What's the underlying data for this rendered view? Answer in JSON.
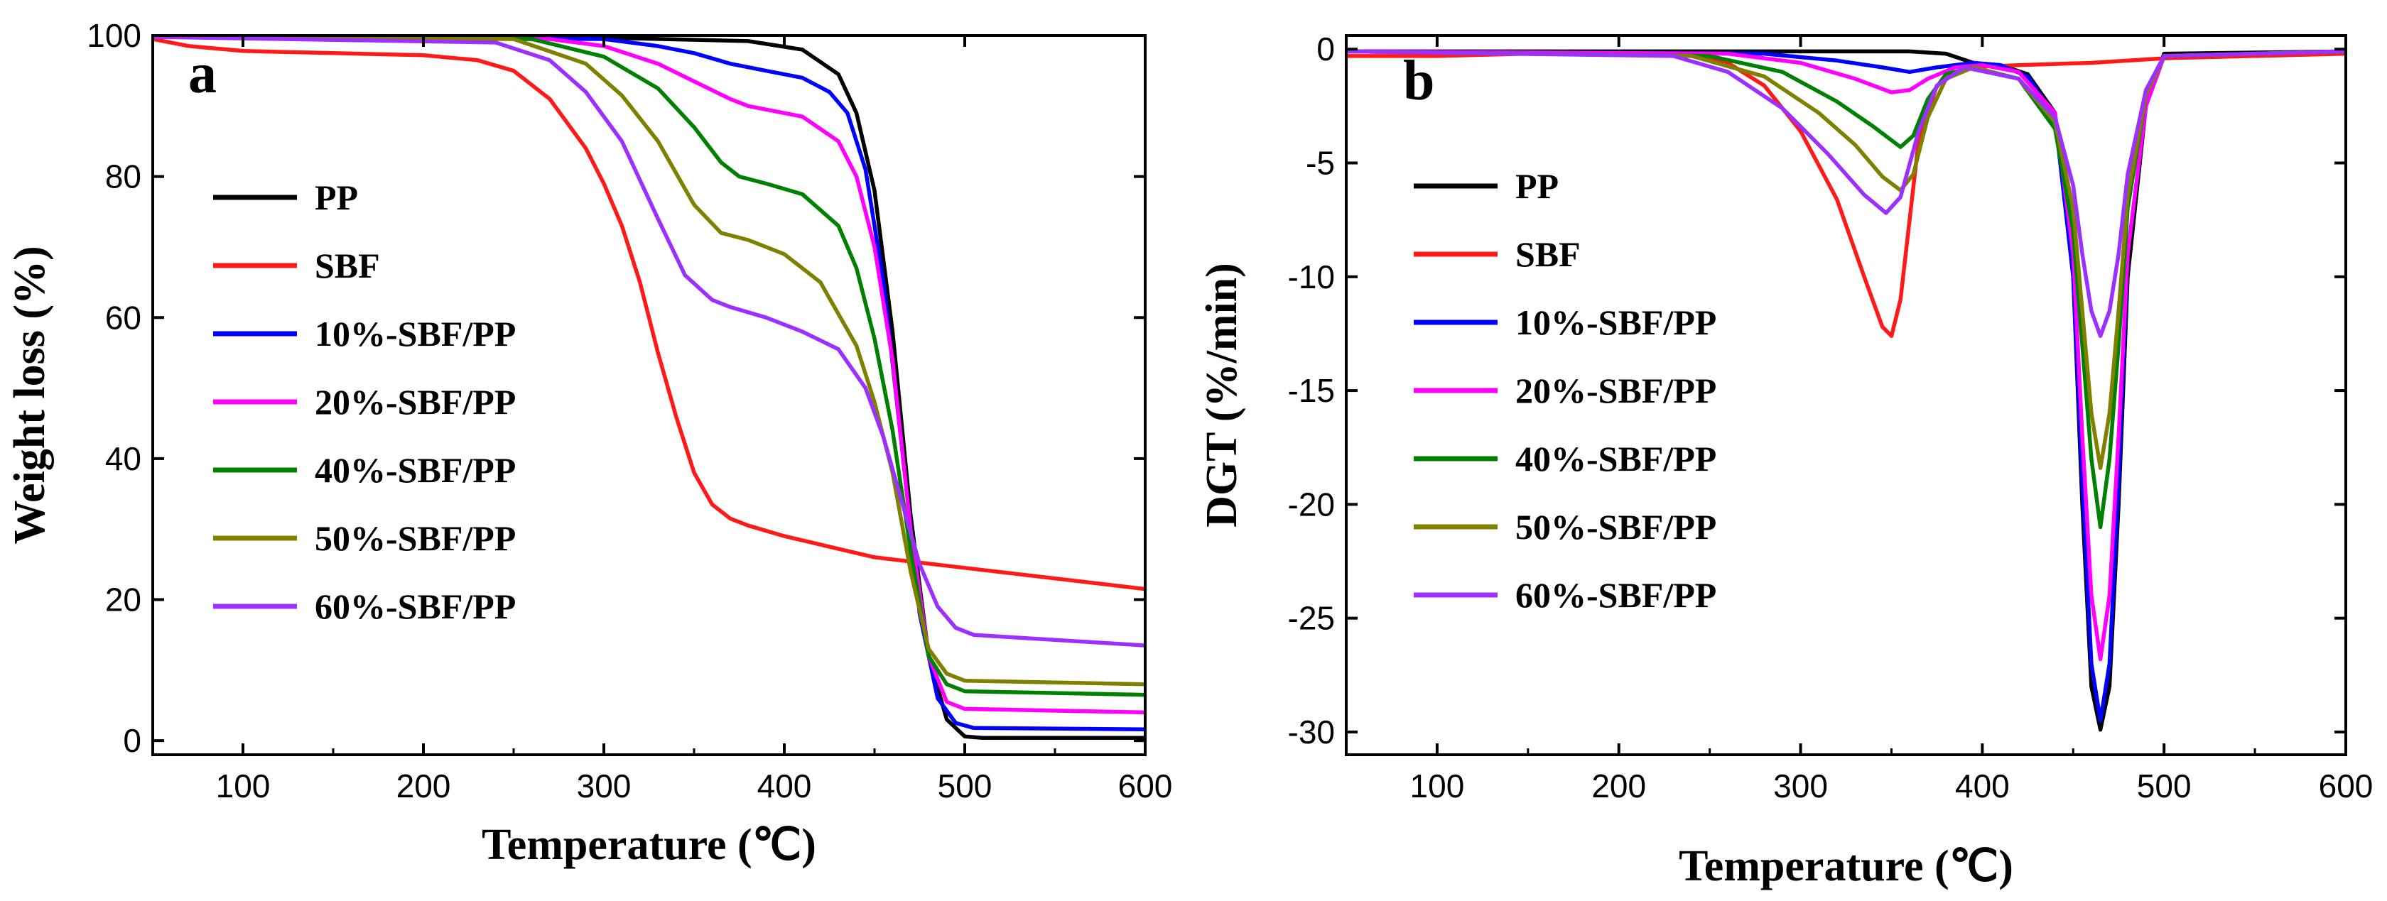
{
  "chart_data": [
    {
      "type": "line",
      "panel_label": "a",
      "xlabel": "Temperature (℃)",
      "ylabel": "Weight loss (%)",
      "xlim": [
        50,
        600
      ],
      "ylim": [
        -2,
        100
      ],
      "xticks": [
        100,
        200,
        300,
        400,
        500,
        600
      ],
      "yticks": [
        0,
        20,
        40,
        60,
        80,
        100
      ],
      "legend_position": "center-left",
      "series": [
        {
          "name": "PP",
          "color": "#000000",
          "x": [
            50,
            300,
            380,
            410,
            430,
            440,
            450,
            460,
            470,
            480,
            490,
            500,
            510,
            600
          ],
          "y": [
            99.8,
            99.7,
            99.2,
            98,
            94.5,
            89,
            78,
            58,
            32,
            12,
            3,
            0.6,
            0.4,
            0.4
          ]
        },
        {
          "name": "SBF",
          "color": "#ff1a1a",
          "x": [
            50,
            70,
            100,
            150,
            200,
            230,
            250,
            270,
            290,
            300,
            310,
            320,
            330,
            340,
            350,
            360,
            370,
            380,
            400,
            450,
            500,
            600
          ],
          "y": [
            99.5,
            98.5,
            97.8,
            97.5,
            97.2,
            96.5,
            95,
            91,
            84,
            79,
            73,
            65,
            55,
            46,
            38,
            33.5,
            31.5,
            30.5,
            29,
            26,
            24.5,
            21.5
          ]
        },
        {
          "name": "10%-SBF/PP",
          "color": "#0000ff",
          "x": [
            50,
            300,
            330,
            350,
            370,
            390,
            410,
            425,
            435,
            445,
            455,
            465,
            475,
            485,
            495,
            505,
            600
          ],
          "y": [
            99.8,
            99.5,
            98.5,
            97.5,
            96,
            95,
            94,
            92,
            89,
            81,
            65,
            42,
            18,
            6,
            2.5,
            1.8,
            1.6
          ]
        },
        {
          "name": "20%-SBF/PP",
          "color": "#ff00ff",
          "x": [
            50,
            270,
            300,
            330,
            350,
            370,
            380,
            390,
            410,
            430,
            440,
            450,
            460,
            470,
            480,
            490,
            500,
            600
          ],
          "y": [
            99.8,
            99.5,
            98.5,
            96,
            93.5,
            91,
            90,
            89.5,
            88.5,
            85,
            80,
            70,
            54,
            30,
            12,
            5.5,
            4.5,
            4
          ]
        },
        {
          "name": "40%-SBF/PP",
          "color": "#008000",
          "x": [
            50,
            260,
            300,
            330,
            350,
            365,
            375,
            390,
            410,
            430,
            440,
            450,
            460,
            470,
            480,
            490,
            500,
            600
          ],
          "y": [
            99.8,
            99.5,
            97,
            92.5,
            87,
            82,
            80,
            79,
            77.5,
            73,
            67,
            57,
            44,
            27,
            12,
            8,
            7,
            6.5
          ]
        },
        {
          "name": "50%-SBF/PP",
          "color": "#808000",
          "x": [
            50,
            250,
            290,
            310,
            330,
            350,
            365,
            380,
            400,
            420,
            440,
            450,
            460,
            470,
            480,
            490,
            500,
            600
          ],
          "y": [
            99.8,
            99.5,
            96,
            91.5,
            85,
            76,
            72,
            71,
            69,
            65,
            56,
            48,
            38,
            24,
            13,
            9.5,
            8.5,
            8
          ]
        },
        {
          "name": "60%-SBF/PP",
          "color": "#9b30ff",
          "x": [
            50,
            240,
            270,
            290,
            310,
            330,
            345,
            360,
            370,
            390,
            410,
            430,
            445,
            455,
            465,
            475,
            485,
            495,
            505,
            600
          ],
          "y": [
            99.8,
            99,
            96.5,
            92,
            85,
            74,
            66,
            62.5,
            61.5,
            60,
            58,
            55.5,
            50,
            43,
            34,
            25,
            19,
            16,
            15,
            13.5
          ]
        }
      ]
    },
    {
      "type": "line",
      "panel_label": "b",
      "xlabel": "Temperature (℃)",
      "ylabel": "DGT (%/min)",
      "xlim": [
        50,
        600
      ],
      "ylim": [
        -31,
        0.6
      ],
      "xticks": [
        100,
        200,
        300,
        400,
        500,
        600
      ],
      "yticks": [
        0,
        -5,
        -10,
        -15,
        -20,
        -25,
        -30
      ],
      "legend_position": "center-left",
      "series": [
        {
          "name": "PP",
          "color": "#000000",
          "x": [
            50,
            300,
            360,
            380,
            395,
            410,
            425,
            440,
            450,
            455,
            460,
            465,
            470,
            475,
            480,
            490,
            500,
            600
          ],
          "y": [
            -0.1,
            -0.1,
            -0.1,
            -0.2,
            -0.6,
            -0.7,
            -1.1,
            -2.8,
            -10,
            -20,
            -28,
            -29.9,
            -28,
            -20,
            -10,
            -2.5,
            -0.2,
            -0.1
          ]
        },
        {
          "name": "SBF",
          "color": "#ff1a1a",
          "x": [
            50,
            100,
            150,
            200,
            240,
            260,
            280,
            300,
            320,
            335,
            345,
            350,
            355,
            360,
            365,
            375,
            390,
            420,
            460,
            500,
            600
          ],
          "y": [
            -0.3,
            -0.3,
            -0.2,
            -0.2,
            -0.3,
            -0.6,
            -1.6,
            -3.6,
            -6.6,
            -10,
            -12.2,
            -12.6,
            -11,
            -7.5,
            -4,
            -1.6,
            -0.8,
            -0.7,
            -0.6,
            -0.4,
            -0.2
          ]
        },
        {
          "name": "10%-SBF/PP",
          "color": "#0000ff",
          "x": [
            50,
            280,
            320,
            345,
            360,
            375,
            395,
            410,
            425,
            440,
            450,
            455,
            460,
            465,
            470,
            475,
            480,
            490,
            500,
            600
          ],
          "y": [
            -0.1,
            -0.2,
            -0.5,
            -0.8,
            -1,
            -0.8,
            -0.6,
            -0.7,
            -1.2,
            -3,
            -10,
            -19,
            -27,
            -29.5,
            -27,
            -19,
            -9,
            -2.5,
            -0.3,
            -0.1
          ]
        },
        {
          "name": "20%-SBF/PP",
          "color": "#ff00ff",
          "x": [
            50,
            260,
            300,
            330,
            350,
            360,
            370,
            385,
            400,
            420,
            440,
            450,
            455,
            460,
            465,
            470,
            475,
            480,
            490,
            500,
            600
          ],
          "y": [
            -0.1,
            -0.2,
            -0.6,
            -1.3,
            -1.9,
            -1.8,
            -1.3,
            -0.8,
            -0.7,
            -1,
            -2.8,
            -9,
            -17,
            -24,
            -26.8,
            -24,
            -17,
            -9,
            -2.5,
            -0.3,
            -0.1
          ]
        },
        {
          "name": "40%-SBF/PP",
          "color": "#008000",
          "x": [
            50,
            250,
            290,
            320,
            340,
            355,
            362,
            370,
            380,
            395,
            420,
            440,
            450,
            455,
            460,
            465,
            470,
            475,
            480,
            490,
            500,
            600
          ],
          "y": [
            -0.1,
            -0.3,
            -1,
            -2.3,
            -3.4,
            -4.3,
            -3.8,
            -2.2,
            -1.1,
            -0.8,
            -1.3,
            -3.5,
            -8,
            -13,
            -18,
            -21,
            -18,
            -13,
            -7,
            -2,
            -0.3,
            -0.1
          ]
        },
        {
          "name": "50%-SBF/PP",
          "color": "#808000",
          "x": [
            50,
            240,
            280,
            310,
            330,
            345,
            355,
            362,
            370,
            380,
            395,
            420,
            440,
            450,
            455,
            460,
            465,
            470,
            475,
            480,
            490,
            500,
            600
          ],
          "y": [
            -0.1,
            -0.3,
            -1.2,
            -2.8,
            -4.2,
            -5.6,
            -6.2,
            -5.5,
            -3,
            -1.3,
            -0.8,
            -1.3,
            -3.2,
            -7,
            -11.5,
            -16,
            -18.4,
            -16,
            -11.5,
            -6.5,
            -2,
            -0.3,
            -0.1
          ]
        },
        {
          "name": "60%-SBF/PP",
          "color": "#9b30ff",
          "x": [
            50,
            230,
            260,
            290,
            315,
            335,
            347,
            355,
            365,
            375,
            390,
            420,
            440,
            450,
            455,
            460,
            465,
            470,
            475,
            480,
            490,
            500,
            600
          ],
          "y": [
            -0.1,
            -0.3,
            -1,
            -2.6,
            -4.6,
            -6.4,
            -7.2,
            -6.5,
            -3.6,
            -1.6,
            -0.8,
            -1.3,
            -3,
            -6,
            -9,
            -11.5,
            -12.6,
            -11.5,
            -9,
            -5.5,
            -1.8,
            -0.3,
            -0.1
          ]
        }
      ]
    }
  ]
}
